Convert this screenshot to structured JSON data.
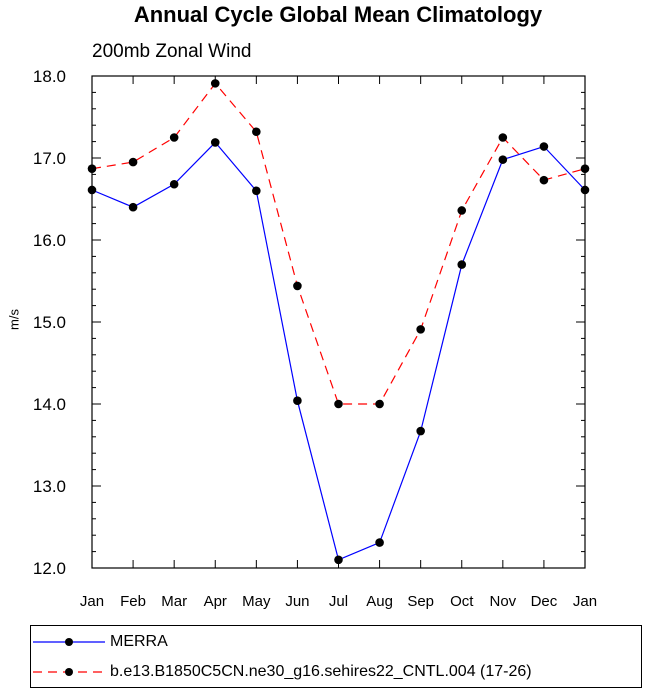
{
  "chart_data": {
    "type": "line",
    "title": "Annual Cycle Global Mean Climatology",
    "subtitle": "200mb Zonal Wind",
    "xlabel": "",
    "ylabel": "m/s",
    "categories": [
      "Jan",
      "Feb",
      "Mar",
      "Apr",
      "May",
      "Jun",
      "Jul",
      "Aug",
      "Sep",
      "Oct",
      "Nov",
      "Dec",
      "Jan"
    ],
    "ylim": [
      12.0,
      18.0
    ],
    "yticks": [
      "12.0",
      "13.0",
      "14.0",
      "15.0",
      "16.0",
      "17.0",
      "18.0"
    ],
    "grid": false,
    "legend_position": "bottom",
    "series": [
      {
        "name": "MERRA",
        "color": "#0000ff",
        "style": "solid",
        "marker": "circle",
        "values": [
          16.61,
          16.4,
          16.68,
          17.19,
          16.6,
          14.04,
          12.1,
          12.31,
          13.67,
          15.7,
          16.98,
          17.14,
          16.61
        ]
      },
      {
        "name": "b.e13.B1850C5CN.ne30_g16.sehires22_CNTL.004 (17-26)",
        "color": "#ff0000",
        "style": "dashed",
        "marker": "circle",
        "values": [
          16.87,
          16.95,
          17.25,
          17.91,
          17.32,
          15.44,
          14.0,
          14.0,
          14.91,
          16.36,
          17.25,
          16.73,
          16.87
        ]
      }
    ]
  }
}
